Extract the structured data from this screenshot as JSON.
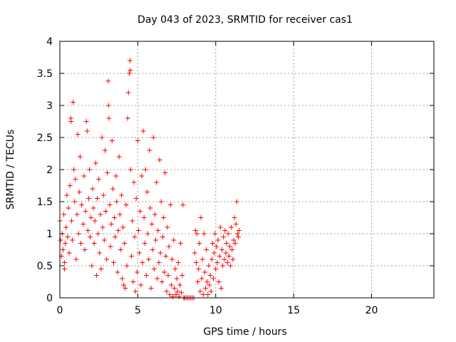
{
  "chart_data": {
    "type": "scatter",
    "title": "Day 043 of 2023, SRMTID for receiver cas1",
    "xlabel": "GPS time / hours",
    "ylabel": "SRMTID / TECUs",
    "xlim": [
      0,
      24
    ],
    "ylim": [
      0,
      4
    ],
    "xticks": [
      0,
      5,
      10,
      15,
      20
    ],
    "yticks": [
      0,
      0.5,
      1,
      1.5,
      2,
      2.5,
      3,
      3.5,
      4
    ],
    "xtick_labels": [
      "0",
      "5",
      "10",
      "15",
      "20"
    ],
    "ytick_labels": [
      "0",
      "0.5",
      "1",
      "1.5",
      "2",
      "2.5",
      "3",
      "3.5",
      "4"
    ],
    "grid": true,
    "marker": "+",
    "color": "#ff0000",
    "series": [
      {
        "name": "cas1",
        "points": [
          [
            0.0,
            1.2
          ],
          [
            0.05,
            0.9
          ],
          [
            0.1,
            0.65
          ],
          [
            0.15,
            1.0
          ],
          [
            0.2,
            0.75
          ],
          [
            0.25,
            1.3
          ],
          [
            0.3,
            0.55
          ],
          [
            0.3,
            0.45
          ],
          [
            0.35,
            0.85
          ],
          [
            0.4,
            1.1
          ],
          [
            0.45,
            1.6
          ],
          [
            0.5,
            0.95
          ],
          [
            0.55,
            1.4
          ],
          [
            0.6,
            0.7
          ],
          [
            0.65,
            1.75
          ],
          [
            0.7,
            2.8
          ],
          [
            0.72,
            2.75
          ],
          [
            0.75,
            1.2
          ],
          [
            0.8,
            0.9
          ],
          [
            0.85,
            3.05
          ],
          [
            0.9,
            2.0
          ],
          [
            0.95,
            1.5
          ],
          [
            1.0,
            1.85
          ],
          [
            1.05,
            0.6
          ],
          [
            1.1,
            1.3
          ],
          [
            1.15,
            2.55
          ],
          [
            1.2,
            1.0
          ],
          [
            1.25,
            1.65
          ],
          [
            1.3,
            2.2
          ],
          [
            1.35,
            0.85
          ],
          [
            1.4,
            1.45
          ],
          [
            1.5,
            1.15
          ],
          [
            1.55,
            1.9
          ],
          [
            1.6,
            0.75
          ],
          [
            1.65,
            1.35
          ],
          [
            1.7,
            2.75
          ],
          [
            1.75,
            2.6
          ],
          [
            1.8,
            1.05
          ],
          [
            1.85,
            1.55
          ],
          [
            1.9,
            2.0
          ],
          [
            1.95,
            0.95
          ],
          [
            2.0,
            1.25
          ],
          [
            2.05,
            0.5
          ],
          [
            2.1,
            1.7
          ],
          [
            2.15,
            1.4
          ],
          [
            2.2,
            0.85
          ],
          [
            2.25,
            1.2
          ],
          [
            2.3,
            2.1
          ],
          [
            2.35,
            0.35
          ],
          [
            2.4,
            1.55
          ],
          [
            2.45,
            1.0
          ],
          [
            2.5,
            1.85
          ],
          [
            2.55,
            0.7
          ],
          [
            2.6,
            1.3
          ],
          [
            2.65,
            0.45
          ],
          [
            2.7,
            2.5
          ],
          [
            2.75,
            1.1
          ],
          [
            2.8,
            1.6
          ],
          [
            2.85,
            0.9
          ],
          [
            2.9,
            2.3
          ],
          [
            2.95,
            1.35
          ],
          [
            3.0,
            0.6
          ],
          [
            3.05,
            1.95
          ],
          [
            3.1,
            3.38
          ],
          [
            3.12,
            3.0
          ],
          [
            3.15,
            2.8
          ],
          [
            3.2,
            1.45
          ],
          [
            3.25,
            0.8
          ],
          [
            3.3,
            1.15
          ],
          [
            3.35,
            2.45
          ],
          [
            3.4,
            1.7
          ],
          [
            3.45,
            0.55
          ],
          [
            3.5,
            1.25
          ],
          [
            3.55,
            0.95
          ],
          [
            3.6,
            1.9
          ],
          [
            3.65,
            1.5
          ],
          [
            3.7,
            0.4
          ],
          [
            3.75,
            1.05
          ],
          [
            3.8,
            2.2
          ],
          [
            3.85,
            1.3
          ],
          [
            3.9,
            0.75
          ],
          [
            3.95,
            1.6
          ],
          [
            4.0,
            0.3
          ],
          [
            4.05,
            1.1
          ],
          [
            4.1,
            0.2
          ],
          [
            4.15,
            0.85
          ],
          [
            4.2,
            0.15
          ],
          [
            4.25,
            1.45
          ],
          [
            4.3,
            0.5
          ],
          [
            4.35,
            2.8
          ],
          [
            4.4,
            3.2
          ],
          [
            4.45,
            3.5
          ],
          [
            4.5,
            3.7
          ],
          [
            4.52,
            3.55
          ],
          [
            4.55,
            2.0
          ],
          [
            4.6,
            0.65
          ],
          [
            4.65,
            1.2
          ],
          [
            4.7,
            0.25
          ],
          [
            4.75,
            1.8
          ],
          [
            4.8,
            0.95
          ],
          [
            4.85,
            0.1
          ],
          [
            4.9,
            1.55
          ],
          [
            4.95,
            0.4
          ],
          [
            5.0,
            2.45
          ],
          [
            5.05,
            1.05
          ],
          [
            5.1,
            0.7
          ],
          [
            5.15,
            1.35
          ],
          [
            5.2,
            0.2
          ],
          [
            5.25,
            1.9
          ],
          [
            5.3,
            0.55
          ],
          [
            5.35,
            2.6
          ],
          [
            5.4,
            1.25
          ],
          [
            5.45,
            0.85
          ],
          [
            5.5,
            2.0
          ],
          [
            5.55,
            0.35
          ],
          [
            5.6,
            1.65
          ],
          [
            5.65,
            1.0
          ],
          [
            5.7,
            0.6
          ],
          [
            5.75,
            2.3
          ],
          [
            5.8,
            1.4
          ],
          [
            5.85,
            0.15
          ],
          [
            5.9,
            1.15
          ],
          [
            5.95,
            0.75
          ],
          [
            6.0,
            2.5
          ],
          [
            6.05,
            0.45
          ],
          [
            6.1,
            1.3
          ],
          [
            6.15,
            0.9
          ],
          [
            6.2,
            1.8
          ],
          [
            6.25,
            0.3
          ],
          [
            6.3,
            1.05
          ],
          [
            6.35,
            0.55
          ],
          [
            6.4,
            2.15
          ],
          [
            6.45,
            0.7
          ],
          [
            6.5,
            1.5
          ],
          [
            6.55,
            0.25
          ],
          [
            6.6,
            0.95
          ],
          [
            6.65,
            1.25
          ],
          [
            6.7,
            0.4
          ],
          [
            6.75,
            1.95
          ],
          [
            6.8,
            0.65
          ],
          [
            6.85,
            0.1
          ],
          [
            6.9,
            1.1
          ],
          [
            6.95,
            0.35
          ],
          [
            7.0,
            0.8
          ],
          [
            7.05,
            0.05
          ],
          [
            7.1,
            1.45
          ],
          [
            7.15,
            0.2
          ],
          [
            7.2,
            0.6
          ],
          [
            7.25,
            0.02
          ],
          [
            7.3,
            0.9
          ],
          [
            7.35,
            0.15
          ],
          [
            7.4,
            0.45
          ],
          [
            7.45,
            0.05
          ],
          [
            7.5,
            0.3
          ],
          [
            7.55,
            0.1
          ],
          [
            7.6,
            0.55
          ],
          [
            7.65,
            0.02
          ],
          [
            7.7,
            0.2
          ],
          [
            7.75,
            0.85
          ],
          [
            7.8,
            0.08
          ],
          [
            7.85,
            0.35
          ],
          [
            7.9,
            1.45
          ],
          [
            7.95,
            0.0
          ],
          [
            8.0,
            0.0
          ],
          [
            8.1,
            0.0
          ],
          [
            8.2,
            0.0
          ],
          [
            8.3,
            0.0
          ],
          [
            8.4,
            0.0
          ],
          [
            8.5,
            0.0
          ],
          [
            8.6,
            0.0
          ],
          [
            8.65,
            0.7
          ],
          [
            8.7,
            1.05
          ],
          [
            8.75,
            0.55
          ],
          [
            8.8,
            1.0
          ],
          [
            8.85,
            0.25
          ],
          [
            8.9,
            0.45
          ],
          [
            8.95,
            0.85
          ],
          [
            9.0,
            0.1
          ],
          [
            9.05,
            1.25
          ],
          [
            9.1,
            0.3
          ],
          [
            9.15,
            0.6
          ],
          [
            9.2,
            0.05
          ],
          [
            9.25,
            1.0
          ],
          [
            9.3,
            0.4
          ],
          [
            9.35,
            0.15
          ],
          [
            9.4,
            0.75
          ],
          [
            9.45,
            0.25
          ],
          [
            9.5,
            0.05
          ],
          [
            9.55,
            0.5
          ],
          [
            9.6,
            0.2
          ],
          [
            9.65,
            0.35
          ],
          [
            9.7,
            0.1
          ],
          [
            9.75,
            0.6
          ],
          [
            9.8,
            0.85
          ],
          [
            9.85,
            0.3
          ],
          [
            9.9,
            0.7
          ],
          [
            9.95,
            1.0
          ],
          [
            10.0,
            0.45
          ],
          [
            10.05,
            0.8
          ],
          [
            10.1,
            0.55
          ],
          [
            10.15,
            0.9
          ],
          [
            10.2,
            0.25
          ],
          [
            10.25,
            0.65
          ],
          [
            10.3,
            1.1
          ],
          [
            10.35,
            0.15
          ],
          [
            10.4,
            0.75
          ],
          [
            10.45,
            0.5
          ],
          [
            10.5,
            0.95
          ],
          [
            10.55,
            0.6
          ],
          [
            10.6,
            1.05
          ],
          [
            10.65,
            0.7
          ],
          [
            10.7,
            0.85
          ],
          [
            10.75,
            0.55
          ],
          [
            10.8,
            1.0
          ],
          [
            10.85,
            0.65
          ],
          [
            10.9,
            0.8
          ],
          [
            10.95,
            0.5
          ],
          [
            11.0,
            1.1
          ],
          [
            11.05,
            0.75
          ],
          [
            11.1,
            0.6
          ],
          [
            11.15,
            0.9
          ],
          [
            11.2,
            1.25
          ],
          [
            11.25,
            0.85
          ],
          [
            11.3,
            1.15
          ],
          [
            11.35,
            1.5
          ],
          [
            11.4,
            1.0
          ],
          [
            11.45,
            0.95
          ],
          [
            11.5,
            1.05
          ]
        ]
      }
    ]
  }
}
